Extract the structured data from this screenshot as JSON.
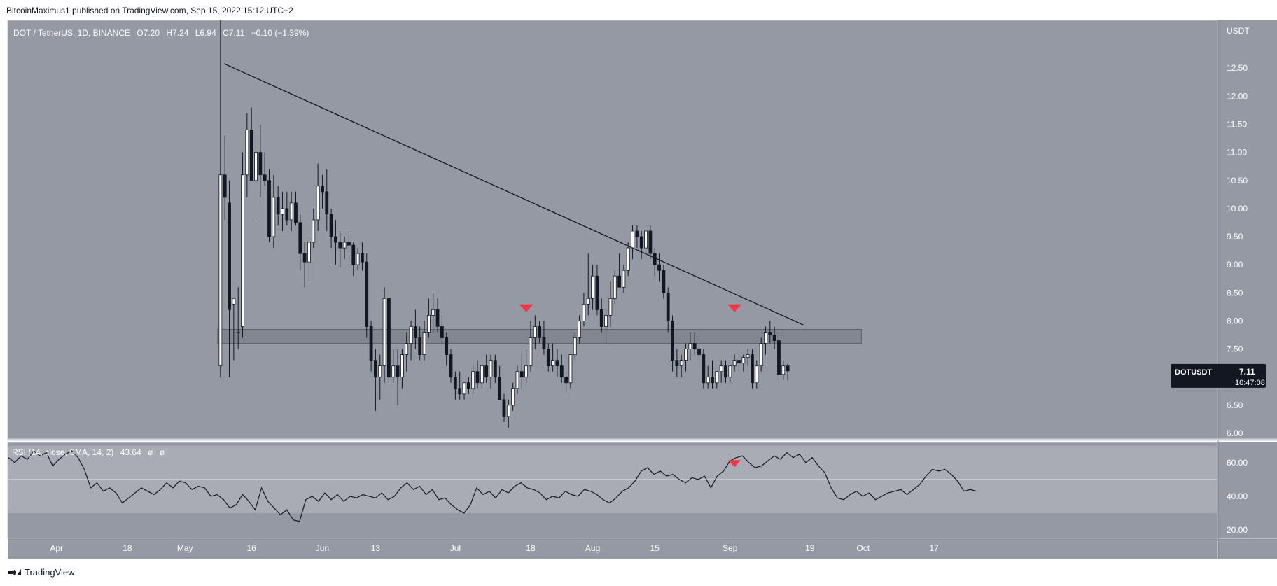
{
  "header": {
    "published_text": "BitcoinMaximus1 published on TradingView.com, Sep 15, 2022 15:12 UTC+2"
  },
  "footer": {
    "brand": "TradingView"
  },
  "chart_data": {
    "type": "candlestick",
    "symbol_line": "DOT / TetherUS, 1D, BINANCE",
    "ohlc": {
      "o_label": "O",
      "o": "7.20",
      "h_label": "H",
      "h": "7.24",
      "l_label": "L",
      "l": "6.94",
      "c_label": "C",
      "c": "7.11",
      "change": "−0.10 (−1.39%)"
    },
    "currency_label": "USDT",
    "price_ticks": [
      "12.50",
      "12.00",
      "11.50",
      "11.00",
      "10.50",
      "10.00",
      "9.50",
      "9.00",
      "8.50",
      "8.00",
      "7.50",
      "7.00",
      "6.50",
      "6.00"
    ],
    "ylim": [
      5.9,
      13.35
    ],
    "last_price_tag": {
      "symbol": "DOTUSDT",
      "price": "7.11",
      "countdown": "10:47:08",
      "value": 7.11
    },
    "x_ticks": [
      {
        "label": "Apr",
        "day": 2
      },
      {
        "label": "18",
        "day": 18
      },
      {
        "label": "May",
        "day": 31
      },
      {
        "label": "16",
        "day": 46
      },
      {
        "label": "Jun",
        "day": 62
      },
      {
        "label": "13",
        "day": 74
      },
      {
        "label": "Jul",
        "day": 92
      },
      {
        "label": "18",
        "day": 109
      },
      {
        "label": "Aug",
        "day": 123
      },
      {
        "label": "15",
        "day": 137
      },
      {
        "label": "Sep",
        "day": 154
      },
      {
        "label": "19",
        "day": 172
      },
      {
        "label": "Oct",
        "day": 184
      },
      {
        "label": "17",
        "day": 200
      }
    ],
    "candles": [
      [
        7.2,
        13.36,
        7.0,
        10.6
      ],
      [
        10.6,
        11.3,
        9.8,
        10.2
      ],
      [
        10.1,
        10.5,
        7.0,
        8.2
      ],
      [
        8.3,
        8.4,
        7.3,
        8.4
      ],
      [
        7.8,
        8.6,
        7.5,
        7.8
      ],
      [
        7.9,
        11.0,
        7.7,
        10.6
      ],
      [
        10.6,
        11.7,
        10.2,
        11.4
      ],
      [
        11.4,
        11.8,
        10.5,
        10.5
      ],
      [
        10.5,
        11.1,
        9.8,
        11.0
      ],
      [
        11.0,
        11.5,
        10.2,
        10.6
      ],
      [
        10.6,
        11.0,
        10.4,
        10.5
      ],
      [
        10.5,
        10.7,
        9.4,
        9.5
      ],
      [
        9.5,
        10.6,
        9.3,
        10.2
      ],
      [
        10.2,
        10.4,
        9.7,
        9.9
      ],
      [
        9.9,
        10.3,
        9.6,
        10.0
      ],
      [
        10.0,
        10.3,
        9.7,
        9.8
      ],
      [
        9.8,
        10.3,
        9.6,
        10.1
      ],
      [
        10.1,
        10.3,
        9.7,
        9.75
      ],
      [
        9.75,
        9.9,
        8.9,
        9.2
      ],
      [
        9.2,
        9.4,
        8.6,
        9.05
      ],
      [
        9.05,
        9.5,
        8.7,
        9.4
      ],
      [
        9.4,
        10.0,
        9.3,
        9.8
      ],
      [
        9.8,
        10.8,
        9.6,
        10.4
      ],
      [
        10.4,
        10.6,
        10.0,
        10.3
      ],
      [
        10.3,
        10.7,
        9.6,
        9.9
      ],
      [
        9.9,
        10.0,
        9.3,
        9.5
      ],
      [
        9.5,
        9.8,
        9.0,
        9.4
      ],
      [
        9.4,
        9.6,
        8.95,
        9.3
      ],
      [
        9.3,
        9.5,
        9.1,
        9.4
      ],
      [
        9.4,
        9.6,
        9.2,
        9.35
      ],
      [
        9.35,
        9.4,
        8.8,
        9.0
      ],
      [
        9.0,
        9.3,
        8.9,
        9.2
      ],
      [
        9.2,
        9.4,
        8.9,
        9.05
      ],
      [
        9.05,
        9.2,
        7.7,
        7.9
      ],
      [
        7.9,
        8.0,
        7.1,
        7.3
      ],
      [
        7.3,
        7.5,
        6.4,
        7.0
      ],
      [
        7.0,
        7.4,
        6.6,
        7.2
      ],
      [
        7.2,
        8.6,
        6.9,
        8.4
      ],
      [
        8.4,
        8.4,
        6.9,
        7.0
      ],
      [
        7.0,
        7.5,
        6.9,
        7.2
      ],
      [
        7.2,
        7.5,
        6.5,
        7.0
      ],
      [
        7.0,
        7.5,
        6.8,
        7.4
      ],
      [
        7.4,
        7.8,
        7.1,
        7.6
      ],
      [
        7.6,
        8.0,
        7.3,
        7.9
      ],
      [
        7.9,
        8.2,
        7.5,
        7.7
      ],
      [
        7.7,
        7.9,
        7.3,
        7.4
      ],
      [
        7.4,
        8.0,
        7.3,
        7.8
      ],
      [
        7.8,
        8.4,
        7.7,
        8.1
      ],
      [
        8.1,
        8.5,
        7.8,
        8.2
      ],
      [
        8.2,
        8.4,
        7.8,
        7.9
      ],
      [
        7.9,
        8.1,
        7.6,
        7.7
      ],
      [
        7.7,
        7.8,
        7.2,
        7.4
      ],
      [
        7.4,
        7.5,
        6.9,
        7.0
      ],
      [
        7.0,
        7.1,
        6.6,
        6.8
      ],
      [
        6.8,
        7.1,
        6.6,
        6.7
      ],
      [
        6.7,
        6.9,
        6.6,
        6.9
      ],
      [
        6.9,
        7.0,
        6.7,
        6.8
      ],
      [
        6.8,
        7.2,
        6.7,
        7.1
      ],
      [
        7.1,
        7.3,
        6.8,
        6.9
      ],
      [
        6.9,
        7.2,
        6.8,
        7.2
      ],
      [
        7.2,
        7.4,
        6.9,
        7.0
      ],
      [
        7.0,
        7.4,
        6.8,
        7.3
      ],
      [
        7.3,
        7.4,
        6.9,
        7.0
      ],
      [
        7.0,
        7.2,
        6.6,
        6.6
      ],
      [
        6.6,
        6.7,
        6.2,
        6.3
      ],
      [
        6.3,
        6.6,
        6.1,
        6.5
      ],
      [
        6.5,
        6.9,
        6.4,
        6.8
      ],
      [
        6.8,
        7.2,
        6.7,
        7.1
      ],
      [
        7.1,
        7.4,
        6.8,
        7.0
      ],
      [
        7.0,
        7.5,
        6.9,
        7.2
      ],
      [
        7.2,
        8.0,
        7.1,
        7.7
      ],
      [
        7.7,
        8.1,
        7.5,
        7.9
      ],
      [
        7.9,
        8.0,
        7.6,
        7.7
      ],
      [
        7.7,
        8.0,
        7.4,
        7.5
      ],
      [
        7.5,
        7.6,
        7.1,
        7.2
      ],
      [
        7.2,
        7.6,
        7.1,
        7.3
      ],
      [
        7.3,
        7.5,
        7.0,
        7.2
      ],
      [
        7.2,
        7.4,
        6.9,
        7.0
      ],
      [
        7.0,
        7.1,
        6.7,
        6.9
      ],
      [
        6.9,
        7.4,
        6.8,
        7.4
      ],
      [
        7.4,
        7.8,
        7.3,
        7.7
      ],
      [
        7.7,
        8.1,
        7.6,
        8.0
      ],
      [
        8.0,
        8.5,
        7.9,
        8.3
      ],
      [
        8.3,
        9.2,
        8.1,
        8.4
      ],
      [
        8.4,
        9.0,
        8.2,
        8.8
      ],
      [
        8.8,
        9.0,
        8.1,
        8.2
      ],
      [
        8.2,
        8.4,
        7.8,
        7.9
      ],
      [
        7.9,
        8.2,
        7.6,
        8.1
      ],
      [
        8.1,
        8.7,
        7.9,
        8.4
      ],
      [
        8.4,
        8.9,
        8.3,
        8.8
      ],
      [
        8.8,
        9.2,
        8.6,
        8.6
      ],
      [
        8.6,
        9.0,
        8.5,
        8.9
      ],
      [
        8.9,
        9.4,
        8.8,
        9.3
      ],
      [
        9.3,
        9.7,
        9.1,
        9.6
      ],
      [
        9.6,
        9.7,
        9.3,
        9.5
      ],
      [
        9.5,
        9.6,
        9.1,
        9.3
      ],
      [
        9.3,
        9.7,
        9.2,
        9.6
      ],
      [
        9.6,
        9.7,
        9.1,
        9.2
      ],
      [
        9.2,
        9.3,
        8.8,
        9.0
      ],
      [
        9.0,
        9.2,
        8.7,
        8.9
      ],
      [
        8.9,
        9.0,
        8.4,
        8.5
      ],
      [
        8.5,
        8.6,
        7.8,
        8.0
      ],
      [
        8.0,
        8.1,
        7.1,
        7.3
      ],
      [
        7.3,
        7.5,
        7.0,
        7.2
      ],
      [
        7.2,
        7.4,
        7.0,
        7.3
      ],
      [
        7.3,
        7.6,
        7.1,
        7.5
      ],
      [
        7.5,
        7.8,
        7.3,
        7.6
      ],
      [
        7.6,
        7.8,
        7.4,
        7.5
      ],
      [
        7.5,
        7.7,
        7.3,
        7.4
      ],
      [
        7.4,
        7.5,
        6.8,
        6.9
      ],
      [
        6.9,
        7.2,
        6.8,
        7.0
      ],
      [
        7.0,
        7.3,
        6.8,
        6.9
      ],
      [
        6.9,
        7.1,
        6.8,
        7.1
      ],
      [
        7.1,
        7.3,
        6.9,
        7.2
      ],
      [
        7.2,
        7.3,
        6.9,
        7.0
      ],
      [
        7.0,
        7.2,
        6.9,
        7.2
      ],
      [
        7.2,
        7.4,
        7.1,
        7.3
      ],
      [
        7.3,
        7.5,
        7.1,
        7.25
      ],
      [
        7.25,
        7.4,
        7.1,
        7.35
      ],
      [
        7.35,
        7.5,
        7.2,
        7.4
      ],
      [
        7.4,
        7.5,
        6.8,
        6.9
      ],
      [
        6.9,
        7.3,
        6.8,
        7.2
      ],
      [
        7.2,
        7.7,
        7.1,
        7.6
      ],
      [
        7.6,
        7.9,
        7.4,
        7.8
      ],
      [
        7.8,
        8.0,
        7.6,
        7.75
      ],
      [
        7.75,
        7.9,
        7.5,
        7.65
      ],
      [
        7.65,
        7.8,
        6.95,
        7.05
      ],
      [
        7.05,
        7.3,
        6.95,
        7.2
      ],
      [
        7.2,
        7.24,
        6.94,
        7.11
      ]
    ],
    "first_candle_day": 39,
    "trendline": {
      "start": {
        "day": 39.8,
        "price": 12.58
      },
      "end": {
        "day": 170.5,
        "price": 7.93
      }
    },
    "horizontal_zone": {
      "from_day": 39,
      "to_day": 183,
      "price_low": 7.6,
      "price_high": 7.85
    },
    "bearish_markers_price": [
      {
        "day": 108,
        "price": 8.22
      },
      {
        "day": 155,
        "price": 8.22
      }
    ],
    "rsi": {
      "label": "RSI (14, close, SMA, 14, 2)",
      "value_text": "43.64",
      "na_1": "ø",
      "na_2": "ø",
      "ticks": [
        "60.00",
        "40.00",
        "20.00"
      ],
      "ylim": [
        15,
        72
      ],
      "band": [
        30,
        70
      ],
      "mid_line": 50,
      "values": [
        [
          0,
          63
        ],
        [
          1,
          60
        ],
        [
          2,
          64
        ],
        [
          3,
          62
        ],
        [
          4,
          67
        ],
        [
          5,
          64
        ],
        [
          6,
          66
        ],
        [
          7,
          58
        ],
        [
          8,
          62
        ],
        [
          9,
          65
        ],
        [
          10,
          67
        ],
        [
          11,
          63
        ],
        [
          12,
          56
        ],
        [
          13,
          45
        ],
        [
          14,
          48
        ],
        [
          15,
          43
        ],
        [
          16,
          45
        ],
        [
          17,
          42
        ],
        [
          18,
          36
        ],
        [
          19,
          39
        ],
        [
          20,
          42
        ],
        [
          21,
          45
        ],
        [
          22,
          43
        ],
        [
          23,
          41
        ],
        [
          24,
          44
        ],
        [
          25,
          48
        ],
        [
          26,
          45
        ],
        [
          27,
          49
        ],
        [
          28,
          48
        ],
        [
          29,
          44
        ],
        [
          30,
          46
        ],
        [
          31,
          45
        ],
        [
          32,
          40
        ],
        [
          33,
          41
        ],
        [
          34,
          38
        ],
        [
          35,
          33
        ],
        [
          36,
          35
        ],
        [
          37,
          41
        ],
        [
          38,
          37
        ],
        [
          39,
          32
        ],
        [
          40,
          45
        ],
        [
          41,
          37
        ],
        [
          42,
          33
        ],
        [
          43,
          29
        ],
        [
          44,
          32
        ],
        [
          45,
          26
        ],
        [
          46,
          25
        ],
        [
          47,
          38
        ],
        [
          48,
          40
        ],
        [
          49,
          37
        ],
        [
          50,
          42
        ],
        [
          51,
          38
        ],
        [
          52,
          41
        ],
        [
          53,
          37
        ],
        [
          54,
          40
        ],
        [
          55,
          39
        ],
        [
          56,
          41
        ],
        [
          57,
          40
        ],
        [
          58,
          39
        ],
        [
          59,
          42
        ],
        [
          60,
          38
        ],
        [
          61,
          40
        ],
        [
          62,
          45
        ],
        [
          63,
          48
        ],
        [
          64,
          44
        ],
        [
          65,
          46
        ],
        [
          66,
          41
        ],
        [
          67,
          44
        ],
        [
          68,
          38
        ],
        [
          69,
          39
        ],
        [
          70,
          35
        ],
        [
          71,
          32
        ],
        [
          72,
          30
        ],
        [
          73,
          35
        ],
        [
          74,
          45
        ],
        [
          75,
          41
        ],
        [
          76,
          43
        ],
        [
          77,
          39
        ],
        [
          78,
          44
        ],
        [
          79,
          42
        ],
        [
          80,
          46
        ],
        [
          81,
          48
        ],
        [
          82,
          45
        ],
        [
          83,
          44
        ],
        [
          84,
          42
        ],
        [
          85,
          38
        ],
        [
          86,
          40
        ],
        [
          87,
          39
        ],
        [
          88,
          43
        ],
        [
          89,
          41
        ],
        [
          90,
          40
        ],
        [
          91,
          44
        ],
        [
          92,
          43
        ],
        [
          93,
          41
        ],
        [
          94,
          38
        ],
        [
          95,
          36
        ],
        [
          96,
          39
        ],
        [
          97,
          43
        ],
        [
          98,
          45
        ],
        [
          99,
          49
        ],
        [
          100,
          55
        ],
        [
          101,
          57
        ],
        [
          102,
          53
        ],
        [
          103,
          55
        ],
        [
          104,
          52
        ],
        [
          105,
          53
        ],
        [
          106,
          50
        ],
        [
          107,
          48
        ],
        [
          108,
          51
        ],
        [
          109,
          50
        ],
        [
          110,
          52
        ],
        [
          111,
          45
        ],
        [
          112,
          52
        ],
        [
          113,
          55
        ],
        [
          114,
          61
        ],
        [
          115,
          63
        ],
        [
          116,
          64
        ],
        [
          117,
          60
        ],
        [
          118,
          57
        ],
        [
          119,
          58
        ],
        [
          120,
          61
        ],
        [
          121,
          64
        ],
        [
          122,
          62
        ],
        [
          123,
          66
        ],
        [
          124,
          63
        ],
        [
          125,
          65
        ],
        [
          126,
          60
        ],
        [
          127,
          63
        ],
        [
          128,
          58
        ],
        [
          129,
          54
        ],
        [
          130,
          45
        ],
        [
          131,
          39
        ],
        [
          132,
          38
        ],
        [
          133,
          41
        ],
        [
          134,
          43
        ],
        [
          135,
          40
        ],
        [
          136,
          42
        ],
        [
          137,
          38
        ],
        [
          138,
          40
        ],
        [
          139,
          42
        ],
        [
          140,
          43
        ],
        [
          141,
          44
        ],
        [
          142,
          41
        ],
        [
          143,
          44
        ],
        [
          144,
          47
        ],
        [
          145,
          52
        ],
        [
          146,
          56
        ],
        [
          147,
          55
        ],
        [
          148,
          56
        ],
        [
          149,
          53
        ],
        [
          150,
          49
        ],
        [
          151,
          43
        ],
        [
          152,
          44
        ],
        [
          153,
          43
        ]
      ],
      "marker": {
        "day": 155,
        "value": 59
      }
    }
  }
}
